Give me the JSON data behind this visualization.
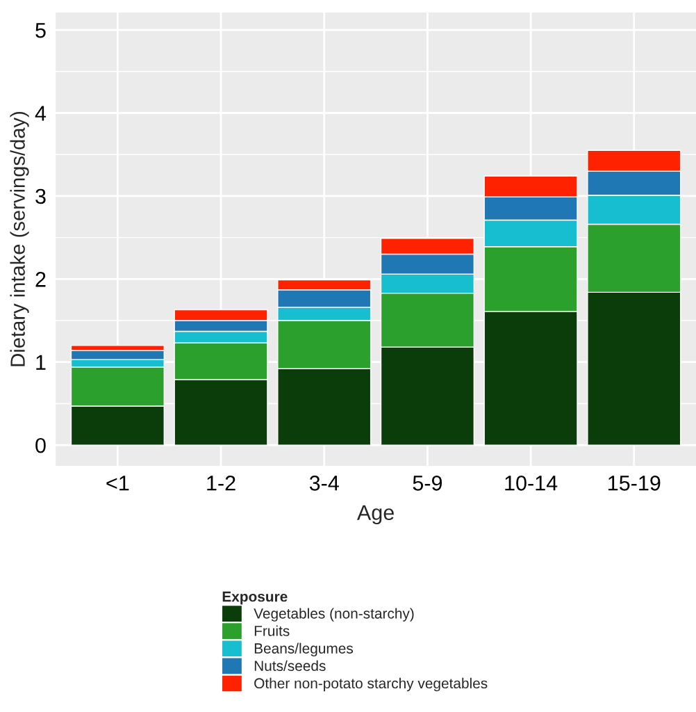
{
  "chart_data": {
    "type": "bar",
    "stacked": true,
    "xlabel": "Age",
    "ylabel": "Dietary intake (servings/day)",
    "legend_title": "Exposure",
    "categories": [
      "<1",
      "1-2",
      "3-4",
      "5-9",
      "10-14",
      "15-19"
    ],
    "series": [
      {
        "name": "Vegetables (non-starchy)",
        "color": "#0b3d0b",
        "values": [
          0.47,
          0.79,
          0.92,
          1.18,
          1.61,
          1.84
        ]
      },
      {
        "name": "Fruits",
        "color": "#2ca02c",
        "values": [
          0.47,
          0.44,
          0.58,
          0.65,
          0.78,
          0.82
        ]
      },
      {
        "name": "Beans/legumes",
        "color": "#17becf",
        "values": [
          0.09,
          0.14,
          0.16,
          0.23,
          0.32,
          0.35
        ]
      },
      {
        "name": "Nuts/seeds",
        "color": "#1f77b4",
        "values": [
          0.11,
          0.13,
          0.21,
          0.24,
          0.28,
          0.29
        ]
      },
      {
        "name": "Other non-potato starchy vegetables",
        "color": "#ff2200",
        "values": [
          0.06,
          0.13,
          0.12,
          0.19,
          0.25,
          0.25
        ]
      }
    ],
    "ylim": [
      -0.25,
      5.21
    ],
    "yticks": [
      0,
      1,
      2,
      3,
      4,
      5
    ],
    "grid": true,
    "legend": "bottom"
  }
}
